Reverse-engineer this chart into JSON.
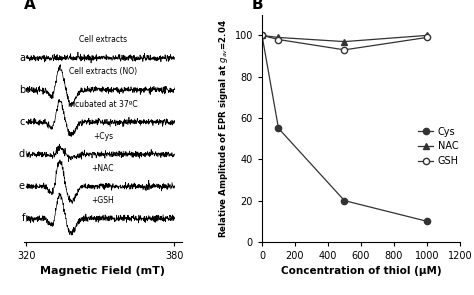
{
  "panel_B": {
    "title": "B",
    "xlabel": "Concentration of thiol (μM)",
    "ylabel": "Relative Amplitude of EPR signal at $g_{av}$=2.04",
    "xlim": [
      0,
      1200
    ],
    "ylim": [
      0,
      110
    ],
    "xticks": [
      0,
      200,
      400,
      600,
      800,
      1000,
      1200
    ],
    "yticks": [
      0,
      20,
      40,
      60,
      80,
      100
    ],
    "series": {
      "Cys": {
        "x": [
          0,
          100,
          500,
          1000
        ],
        "y": [
          100,
          55,
          20,
          10
        ],
        "marker": "o",
        "markerfacecolor": "#333333",
        "color": "#333333",
        "linestyle": "-"
      },
      "NAC": {
        "x": [
          0,
          100,
          500,
          1000
        ],
        "y": [
          100,
          99,
          97,
          100
        ],
        "marker": "^",
        "markerfacecolor": "#333333",
        "color": "#333333",
        "linestyle": "-"
      },
      "GSH": {
        "x": [
          0,
          100,
          500,
          1000
        ],
        "y": [
          100,
          98,
          93,
          99
        ],
        "marker": "o",
        "markerfacecolor": "white",
        "color": "#333333",
        "linestyle": "-"
      }
    }
  },
  "panel_A": {
    "title": "A",
    "xlabel": "Magnetic Field (mT)",
    "traces": [
      {
        "label": "a",
        "sublabel": "Cell extracts"
      },
      {
        "label": "b",
        "sublabel": "Cell extracts (NO)"
      },
      {
        "label": "c",
        "sublabel": "Incubated at 37ºC"
      },
      {
        "label": "d",
        "sublabel": "+Cys"
      },
      {
        "label": "e",
        "sublabel": "+NAC"
      },
      {
        "label": "f",
        "sublabel": "+GSH"
      }
    ]
  }
}
